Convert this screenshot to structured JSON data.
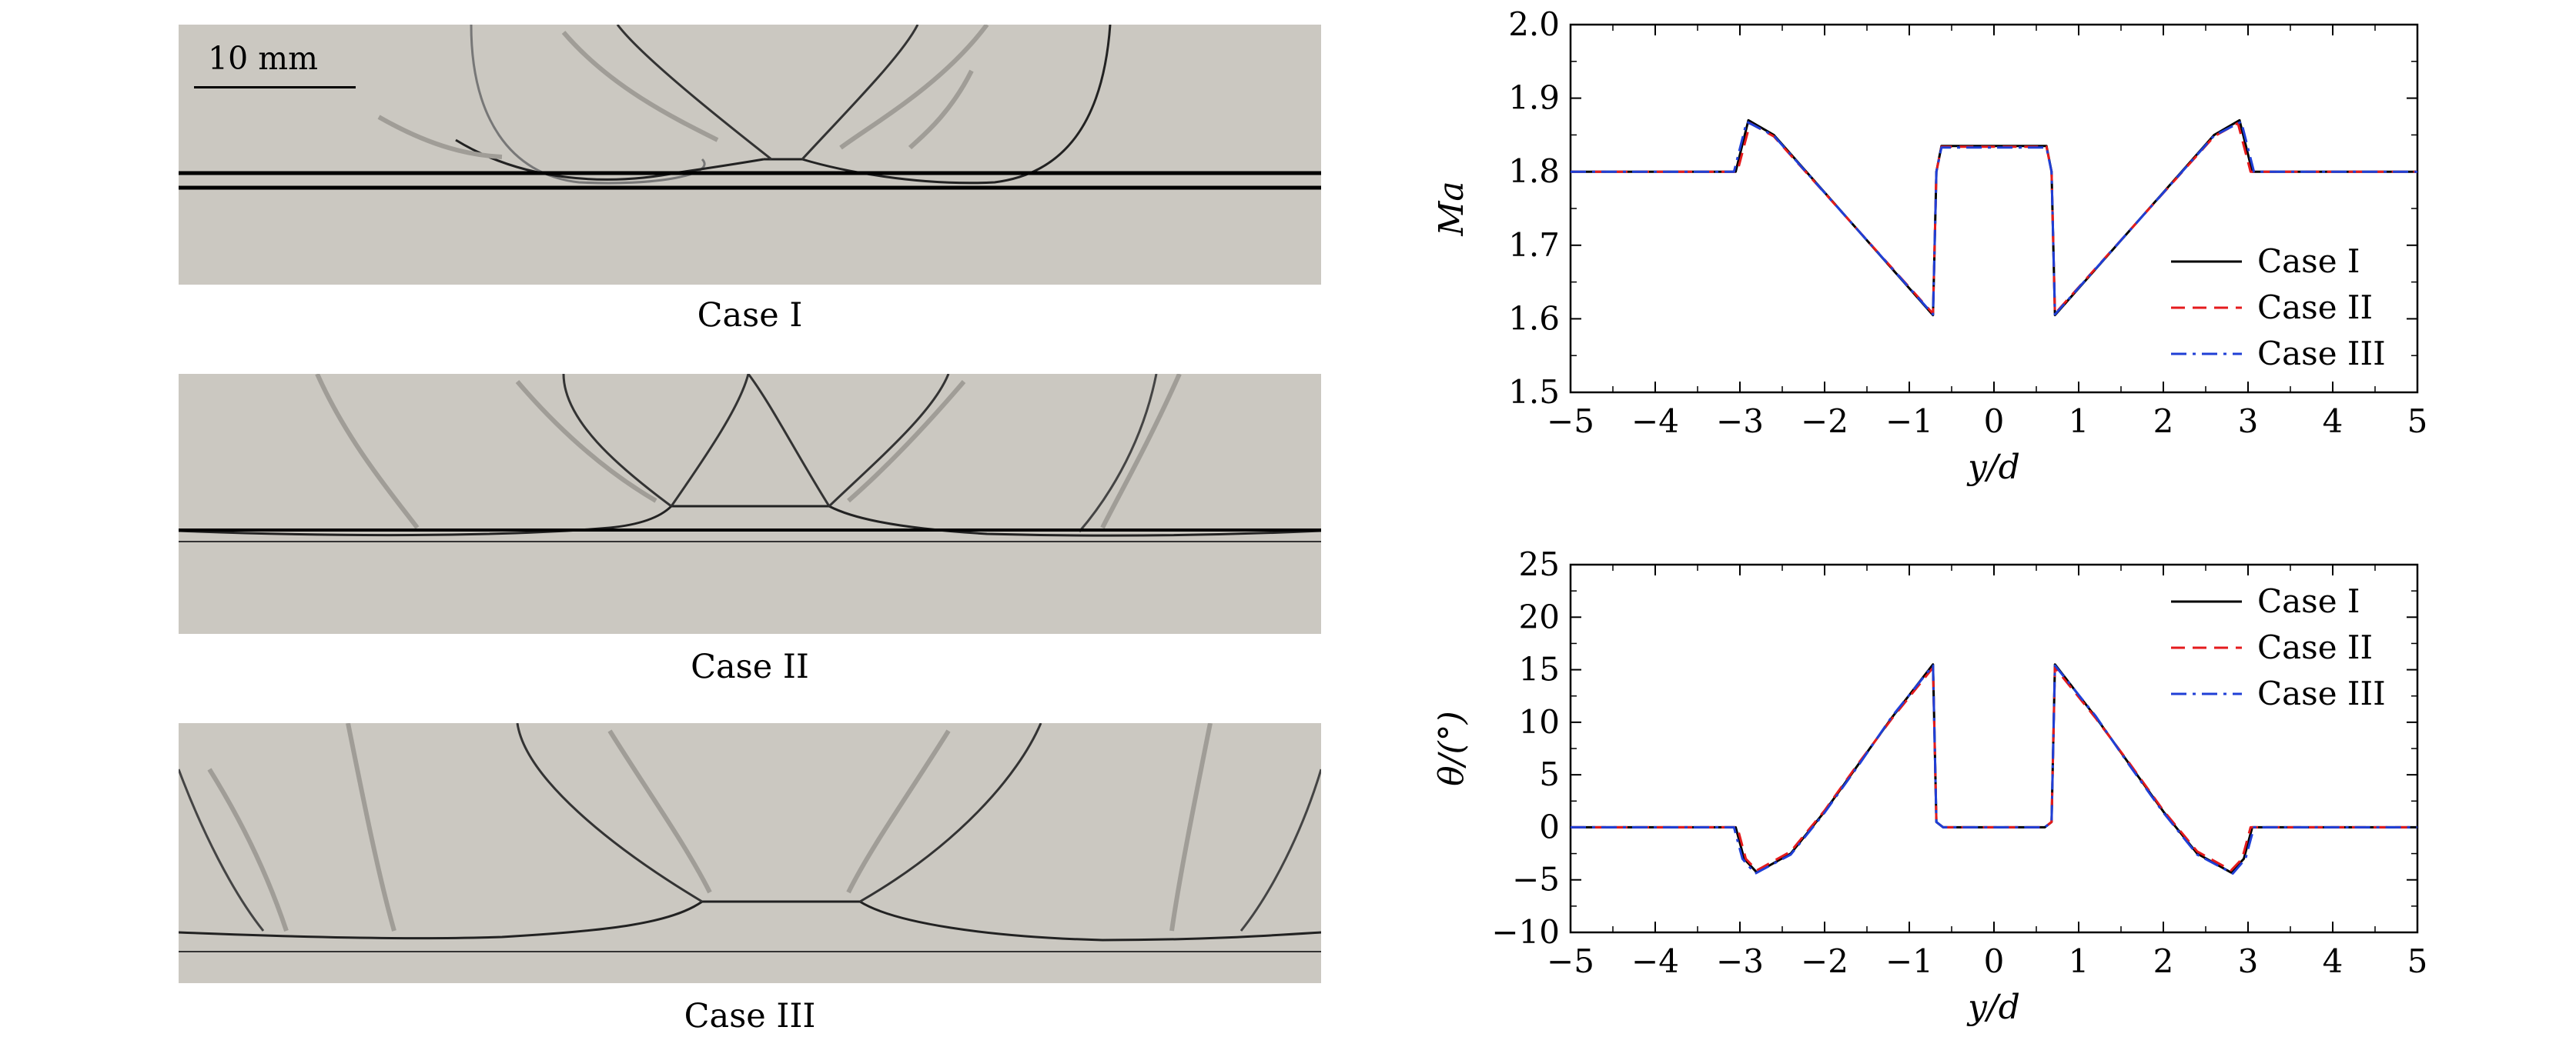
{
  "schlieren": {
    "scale_label": "10 mm",
    "cases": [
      {
        "caption": "Case I"
      },
      {
        "caption": "Case II"
      },
      {
        "caption": "Case III"
      }
    ]
  },
  "chart_data": [
    {
      "type": "line",
      "xlabel": "y/d",
      "ylabel": "Ma",
      "xlim": [
        -5,
        5
      ],
      "ylim": [
        1.5,
        2.0
      ],
      "xticks": [
        -5,
        -4,
        -3,
        -2,
        -1,
        0,
        1,
        2,
        3,
        4,
        5
      ],
      "yticks": [
        1.5,
        1.6,
        1.7,
        1.8,
        1.9,
        2.0
      ],
      "ytick_labels": [
        "1.5",
        "1.6",
        "1.7",
        "1.8",
        "1.9",
        "2.0"
      ],
      "legend_position": "lower-right",
      "series": [
        {
          "name": "Case I",
          "color": "#000000",
          "dash": "solid",
          "x": [
            -5,
            -3.05,
            -2.9,
            -2.6,
            -0.72,
            -0.68,
            -0.62,
            0.62,
            0.68,
            0.72,
            2.6,
            2.9,
            3.05,
            5
          ],
          "y": [
            1.8,
            1.8,
            1.87,
            1.85,
            1.605,
            1.8,
            1.835,
            1.835,
            1.8,
            1.605,
            1.85,
            1.87,
            1.8,
            1.8
          ]
        },
        {
          "name": "Case II",
          "color": "#e41a1c",
          "dash": "dashed",
          "x": [
            -5,
            -3.03,
            -2.88,
            -2.6,
            -0.72,
            -0.68,
            -0.62,
            0.62,
            0.68,
            0.72,
            2.6,
            2.88,
            3.03,
            5
          ],
          "y": [
            1.8,
            1.8,
            1.866,
            1.848,
            1.607,
            1.8,
            1.834,
            1.834,
            1.8,
            1.607,
            1.848,
            1.866,
            1.8,
            1.8
          ]
        },
        {
          "name": "Case III",
          "color": "#1f3fd6",
          "dash": "dashdot",
          "x": [
            -5,
            -3.07,
            -2.92,
            -2.6,
            -0.72,
            -0.68,
            -0.62,
            0.62,
            0.68,
            0.72,
            2.6,
            2.92,
            3.07,
            5
          ],
          "y": [
            1.8,
            1.8,
            1.868,
            1.849,
            1.606,
            1.8,
            1.833,
            1.833,
            1.8,
            1.606,
            1.849,
            1.868,
            1.8,
            1.8
          ]
        }
      ]
    },
    {
      "type": "line",
      "xlabel": "y/d",
      "ylabel": "θ/(°)",
      "xlim": [
        -5,
        5
      ],
      "ylim": [
        -10,
        25
      ],
      "xticks": [
        -5,
        -4,
        -3,
        -2,
        -1,
        0,
        1,
        2,
        3,
        4,
        5
      ],
      "yticks": [
        -10,
        -5,
        0,
        5,
        10,
        15,
        20,
        25
      ],
      "ytick_labels": [
        "−10",
        "−5",
        "0",
        "5",
        "10",
        "15",
        "20",
        "25"
      ],
      "legend_position": "upper-right",
      "series": [
        {
          "name": "Case I",
          "color": "#000000",
          "dash": "solid",
          "x": [
            -5,
            -3.05,
            -2.95,
            -2.8,
            -2.4,
            -2.0,
            -1.6,
            -1.2,
            -0.72,
            -0.68,
            -0.6,
            0.6,
            0.68,
            0.72,
            1.2,
            1.6,
            2.0,
            2.4,
            2.8,
            2.95,
            3.05,
            5
          ],
          "y": [
            0,
            0,
            -3,
            -4.3,
            -2.5,
            1.5,
            6,
            10.5,
            15.5,
            0.5,
            0,
            0,
            0.5,
            15.5,
            10.5,
            6,
            1.5,
            -2.5,
            -4.3,
            -3,
            0,
            0
          ]
        },
        {
          "name": "Case II",
          "color": "#e41a1c",
          "dash": "dashed",
          "x": [
            -5,
            -3.03,
            -2.93,
            -2.8,
            -2.4,
            -2.0,
            -1.6,
            -1.2,
            -0.72,
            -0.68,
            -0.6,
            0.6,
            0.68,
            0.72,
            1.2,
            1.6,
            2.0,
            2.4,
            2.8,
            2.93,
            3.03,
            5
          ],
          "y": [
            0,
            0,
            -3,
            -4.1,
            -2.3,
            1.6,
            6.1,
            10.4,
            15.2,
            0.5,
            0,
            0,
            0.5,
            15.2,
            10.4,
            6.1,
            1.6,
            -2.3,
            -4.1,
            -3,
            0,
            0
          ]
        },
        {
          "name": "Case III",
          "color": "#1f3fd6",
          "dash": "dashdot",
          "x": [
            -5,
            -3.07,
            -2.97,
            -2.82,
            -2.4,
            -2.0,
            -1.6,
            -1.2,
            -0.72,
            -0.68,
            -0.6,
            0.6,
            0.68,
            0.72,
            1.2,
            1.6,
            2.0,
            2.4,
            2.82,
            2.97,
            3.07,
            5
          ],
          "y": [
            0,
            0,
            -3,
            -4.4,
            -2.6,
            1.4,
            5.9,
            10.6,
            15.4,
            0.5,
            0,
            0,
            0.5,
            15.4,
            10.6,
            5.9,
            1.4,
            -2.6,
            -4.4,
            -3,
            0,
            0
          ]
        }
      ]
    }
  ]
}
